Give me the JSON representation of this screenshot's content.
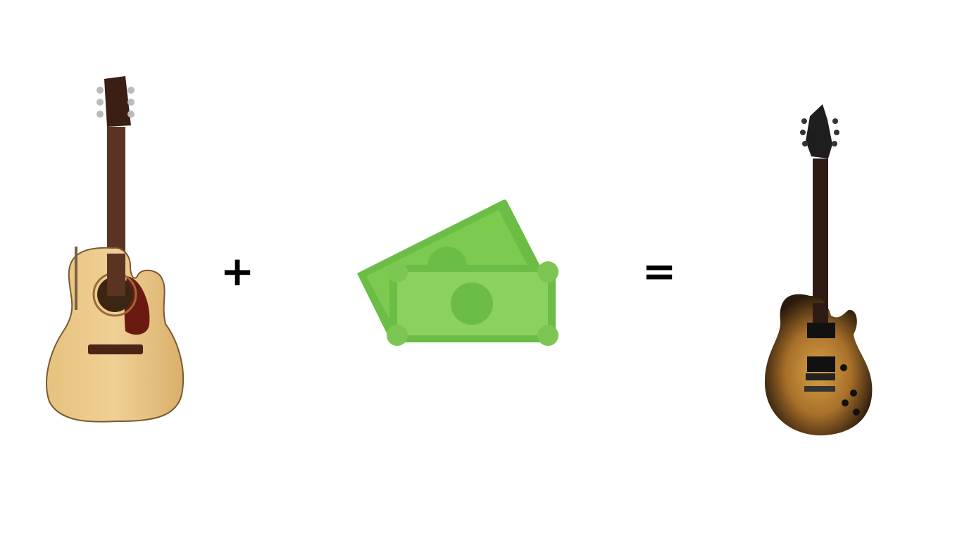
{
  "equation": {
    "plus": "+",
    "equals": "="
  }
}
